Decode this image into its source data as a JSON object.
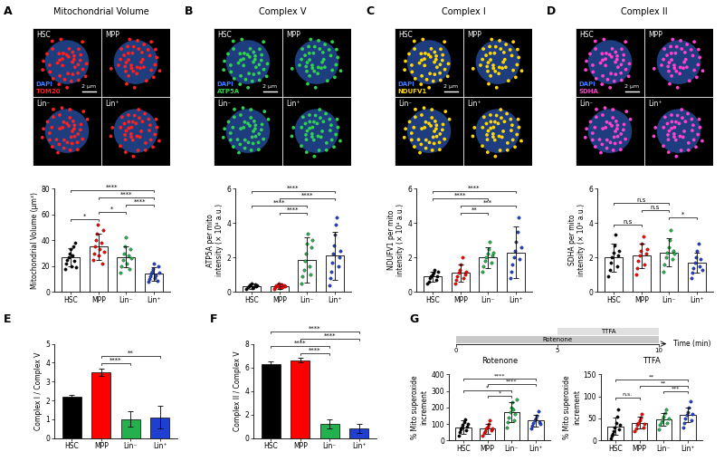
{
  "chart_data": [
    {
      "panel": "A",
      "title": "Mitochondrial Volume",
      "type": "dot_bar",
      "image": {
        "channels": [
          {
            "name": "DAPI",
            "color": "#3a7bff"
          },
          {
            "name": "TOM20",
            "color": "#ff2020"
          }
        ],
        "scale_bar": "2 μm"
      },
      "categories": [
        "HSC",
        "MPP",
        "Lin⁻",
        "Lin⁺"
      ],
      "colors": [
        "#000000",
        "#ff0000",
        "#22b14c",
        "#1f3fd0"
      ],
      "values": [
        27,
        35,
        27,
        14
      ],
      "errors": [
        7,
        10,
        8,
        5
      ],
      "points": [
        [
          18,
          22,
          25,
          27,
          30,
          33,
          20,
          28,
          35,
          24,
          38,
          19
        ],
        [
          25,
          30,
          35,
          40,
          45,
          52,
          28,
          33,
          38,
          22,
          48,
          31
        ],
        [
          15,
          20,
          25,
          30,
          35,
          42,
          22,
          28,
          18,
          33,
          26
        ],
        [
          8,
          10,
          12,
          14,
          16,
          18,
          22,
          11,
          13,
          9,
          20,
          15
        ]
      ],
      "ylabel": "Mitochondrial Volume (μm³)",
      "ylim": [
        0,
        80
      ],
      "yticks": [
        0,
        20,
        40,
        60,
        80
      ],
      "comparisons": [
        {
          "pair": [
            "HSC",
            "MPP"
          ],
          "label": "*"
        },
        {
          "pair": [
            "MPP",
            "Lin⁻"
          ],
          "label": "*"
        },
        {
          "pair": [
            "Lin⁻",
            "Lin⁺"
          ],
          "label": "****"
        },
        {
          "pair": [
            "MPP",
            "Lin⁺"
          ],
          "label": "****"
        },
        {
          "pair": [
            "HSC",
            "Lin⁺"
          ],
          "label": "****"
        }
      ]
    },
    {
      "panel": "B",
      "title": "Complex V",
      "type": "dot_bar",
      "image": {
        "channels": [
          {
            "name": "DAPI",
            "color": "#3a7bff"
          },
          {
            "name": "ATP5A",
            "color": "#30d050"
          }
        ],
        "scale_bar": "2 μm"
      },
      "categories": [
        "HSC",
        "MPP",
        "Lin⁻",
        "Lin⁺"
      ],
      "colors": [
        "#000000",
        "#ff0000",
        "#22b14c",
        "#1f3fd0"
      ],
      "values": [
        0.35,
        0.35,
        1.85,
        2.1
      ],
      "errors": [
        0.15,
        0.15,
        1.3,
        1.4
      ],
      "points": [
        [
          0.2,
          0.3,
          0.35,
          0.4,
          0.5,
          0.25,
          0.3,
          0.45,
          0.35,
          0.4
        ],
        [
          0.2,
          0.3,
          0.4,
          0.35,
          0.5,
          0.25,
          0.45,
          0.3,
          0.4,
          0.35
        ],
        [
          0.5,
          0.9,
          1.3,
          1.8,
          2.2,
          2.8,
          3.4,
          1.5,
          1.0,
          2.6,
          3.0
        ],
        [
          0.4,
          0.8,
          1.2,
          1.7,
          2.2,
          2.7,
          3.3,
          3.9,
          4.3,
          1.5,
          2.0,
          2.4
        ]
      ],
      "ylabel": "ATP5A per mito\nintensity (× 10⁴ a.u.)",
      "ylim": [
        0,
        6
      ],
      "yticks": [
        0,
        2,
        4,
        6
      ],
      "comparisons": [
        {
          "pair": [
            "MPP",
            "Lin⁻"
          ],
          "label": "****"
        },
        {
          "pair": [
            "HSC",
            "Lin⁻"
          ],
          "label": "****"
        },
        {
          "pair": [
            "MPP",
            "Lin⁺"
          ],
          "label": "****"
        },
        {
          "pair": [
            "HSC",
            "Lin⁺"
          ],
          "label": "****"
        }
      ]
    },
    {
      "panel": "C",
      "title": "Complex I",
      "type": "dot_bar",
      "image": {
        "channels": [
          {
            "name": "DAPI",
            "color": "#3a7bff"
          },
          {
            "name": "NDUFV1",
            "color": "#ffd700"
          }
        ],
        "scale_bar": "2 μm"
      },
      "categories": [
        "HSC",
        "MPP",
        "Lin⁻",
        "Lin⁺"
      ],
      "colors": [
        "#000000",
        "#ff0000",
        "#22b14c",
        "#1f3fd0"
      ],
      "values": [
        0.9,
        1.1,
        2.0,
        2.3
      ],
      "errors": [
        0.3,
        0.5,
        0.6,
        1.5
      ],
      "points": [
        [
          0.5,
          0.6,
          0.8,
          0.9,
          1.0,
          1.1,
          1.3,
          0.7,
          0.9,
          1.2
        ],
        [
          0.5,
          0.7,
          0.9,
          1.1,
          1.3,
          1.6,
          2.0,
          0.8,
          1.0,
          1.2
        ],
        [
          1.2,
          1.5,
          1.8,
          2.0,
          2.2,
          2.5,
          2.9,
          1.7,
          2.1,
          2.3
        ],
        [
          0.8,
          1.2,
          1.6,
          2.0,
          2.4,
          2.9,
          3.5,
          4.3,
          1.9,
          2.6
        ]
      ],
      "ylabel": "NDUFV1 per mito\nintensity (× 10⁴ a.u.)",
      "ylim": [
        0,
        6
      ],
      "yticks": [
        0,
        2,
        4,
        6
      ],
      "comparisons": [
        {
          "pair": [
            "MPP",
            "Lin⁻"
          ],
          "label": "**"
        },
        {
          "pair": [
            "MPP",
            "Lin⁺"
          ],
          "label": "***"
        },
        {
          "pair": [
            "HSC",
            "Lin⁻"
          ],
          "label": "****"
        },
        {
          "pair": [
            "HSC",
            "Lin⁺"
          ],
          "label": "****"
        }
      ]
    },
    {
      "panel": "D",
      "title": "Complex II",
      "type": "dot_bar",
      "image": {
        "channels": [
          {
            "name": "DAPI",
            "color": "#3a7bff"
          },
          {
            "name": "SDHA",
            "color": "#ff40d0"
          }
        ],
        "scale_bar": "2 μm"
      },
      "categories": [
        "HSC",
        "MPP",
        "Lin⁻",
        "Lin⁺"
      ],
      "colors": [
        "#000000",
        "#ff0000",
        "#22b14c",
        "#1f3fd0"
      ],
      "values": [
        2.0,
        2.1,
        2.3,
        1.7
      ],
      "errors": [
        0.8,
        0.7,
        0.8,
        0.6
      ],
      "points": [
        [
          0.9,
          1.3,
          1.7,
          2.0,
          2.3,
          2.7,
          3.3,
          1.5,
          2.1,
          2.4
        ],
        [
          1.0,
          1.4,
          1.8,
          2.1,
          2.4,
          2.8,
          3.2,
          1.6,
          2.2,
          2.5
        ],
        [
          1.2,
          1.6,
          2.0,
          2.3,
          2.6,
          3.0,
          3.6,
          1.9,
          2.4,
          2.2
        ],
        [
          0.8,
          1.1,
          1.4,
          1.7,
          2.0,
          2.4,
          2.8,
          1.5,
          1.9,
          1.3
        ]
      ],
      "ylabel": "SDHA per mito\nintensity (× 10⁴ a.u.)",
      "ylim": [
        0,
        6
      ],
      "yticks": [
        0,
        2,
        4,
        6
      ],
      "comparisons": [
        {
          "pair": [
            "HSC",
            "MPP"
          ],
          "label": "n.s"
        },
        {
          "pair": [
            "Lin⁻",
            "Lin⁺"
          ],
          "label": "*"
        },
        {
          "pair": [
            "MPP",
            "Lin⁻"
          ],
          "label": "n.s"
        },
        {
          "pair": [
            "HSC",
            "Lin⁻"
          ],
          "label": "n.s"
        }
      ]
    },
    {
      "panel": "E",
      "type": "bar",
      "categories": [
        "HSC",
        "MPP",
        "Lin⁻",
        "Lin⁺"
      ],
      "colors": [
        "#000000",
        "#ff0000",
        "#22b14c",
        "#1f3fd0"
      ],
      "values": [
        2.2,
        3.5,
        1.0,
        1.1
      ],
      "errors": [
        0.1,
        0.2,
        0.4,
        0.6
      ],
      "ylabel": "Complex I / Complex V",
      "ylim": [
        0,
        5
      ],
      "yticks": [
        0,
        1,
        2,
        3,
        4,
        5
      ],
      "comparisons": [
        {
          "pair": [
            "MPP",
            "Lin⁻"
          ],
          "label": "****"
        },
        {
          "pair": [
            "MPP",
            "Lin⁺"
          ],
          "label": "**"
        }
      ]
    },
    {
      "panel": "F",
      "type": "bar",
      "categories": [
        "HSC",
        "MPP",
        "Lin⁻",
        "Lin⁺"
      ],
      "colors": [
        "#000000",
        "#ff0000",
        "#22b14c",
        "#1f3fd0"
      ],
      "values": [
        6.3,
        6.6,
        1.2,
        0.8
      ],
      "errors": [
        0.2,
        0.2,
        0.4,
        0.4
      ],
      "ylabel": "Complex II / Complex V",
      "ylim": [
        0,
        8
      ],
      "yticks": [
        0,
        2,
        4,
        6,
        8
      ],
      "comparisons": [
        {
          "pair": [
            "MPP",
            "Lin⁻"
          ],
          "label": "****"
        },
        {
          "pair": [
            "HSC",
            "Lin⁻"
          ],
          "label": "****"
        },
        {
          "pair": [
            "MPP",
            "Lin⁺"
          ],
          "label": "****"
        },
        {
          "pair": [
            "HSC",
            "Lin⁺"
          ],
          "label": "****"
        }
      ]
    },
    {
      "panel": "G",
      "type": "timeline",
      "xlabel": "Time (min)",
      "xlim": [
        0,
        10
      ],
      "xticks": [
        0,
        5,
        10
      ],
      "intervals": [
        {
          "name": "Rotenone",
          "start": 0,
          "end": 10,
          "color": "#c8c8c8"
        },
        {
          "name": "TTFA",
          "start": 5,
          "end": 10,
          "color": "#e0e0e0"
        }
      ]
    },
    {
      "title": "Rotenone",
      "type": "dot_bar",
      "categories": [
        "HSC",
        "MPP",
        "Lin⁻",
        "Lin⁺"
      ],
      "colors": [
        "#000000",
        "#ff0000",
        "#22b14c",
        "#1f3fd0"
      ],
      "values": [
        80,
        71,
        170,
        120
      ],
      "errors": [
        40,
        30,
        60,
        35
      ],
      "points": [
        [
          30,
          50,
          65,
          80,
          95,
          110,
          130,
          60,
          85,
          100
        ],
        [
          30,
          45,
          55,
          70,
          85,
          100,
          120,
          60,
          75
        ],
        [
          80,
          110,
          140,
          170,
          200,
          230,
          190,
          120,
          160,
          250
        ],
        [
          70,
          90,
          105,
          120,
          135,
          150,
          175,
          110,
          100
        ]
      ],
      "ylabel": "% Mito superoxide\nincrement",
      "ylim": [
        0,
        400
      ],
      "yticks": [
        0,
        100,
        200,
        300,
        400
      ],
      "comparisons": [
        {
          "pair": [
            "MPP",
            "Lin⁻"
          ],
          "label": "*"
        },
        {
          "pair": [
            "HSC",
            "Lin⁻"
          ],
          "label": "*"
        },
        {
          "pair": [
            "MPP",
            "Lin⁺"
          ],
          "label": "****"
        },
        {
          "pair": [
            "HSC",
            "Lin⁺"
          ],
          "label": "****"
        }
      ]
    },
    {
      "title": "TTFA",
      "type": "dot_bar",
      "categories": [
        "HSC",
        "MPP",
        "Lin⁻",
        "Lin⁺"
      ],
      "colors": [
        "#000000",
        "#ff0000",
        "#22b14c",
        "#1f3fd0"
      ],
      "values": [
        32,
        40,
        48,
        58
      ],
      "errors": [
        20,
        13,
        14,
        17
      ],
      "points": [
        [
          5,
          10,
          15,
          20,
          30,
          40,
          55,
          70,
          25,
          35
        ],
        [
          20,
          28,
          35,
          40,
          45,
          52,
          60,
          30,
          38
        ],
        [
          25,
          35,
          42,
          48,
          55,
          62,
          70,
          40,
          50
        ],
        [
          30,
          40,
          50,
          58,
          65,
          75,
          90,
          45,
          60
        ]
      ],
      "ylabel": "% Mito superoxide\nincrement",
      "ylim": [
        0,
        150
      ],
      "yticks": [
        0,
        50,
        100,
        150
      ],
      "comparisons": [
        {
          "pair": [
            "HSC",
            "MPP"
          ],
          "label": "n.s."
        },
        {
          "pair": [
            "Lin⁻",
            "Lin⁺"
          ],
          "label": "***"
        },
        {
          "pair": [
            "MPP",
            "Lin⁺"
          ],
          "label": "**"
        },
        {
          "pair": [
            "HSC",
            "Lin⁺"
          ],
          "label": "**"
        }
      ]
    }
  ]
}
